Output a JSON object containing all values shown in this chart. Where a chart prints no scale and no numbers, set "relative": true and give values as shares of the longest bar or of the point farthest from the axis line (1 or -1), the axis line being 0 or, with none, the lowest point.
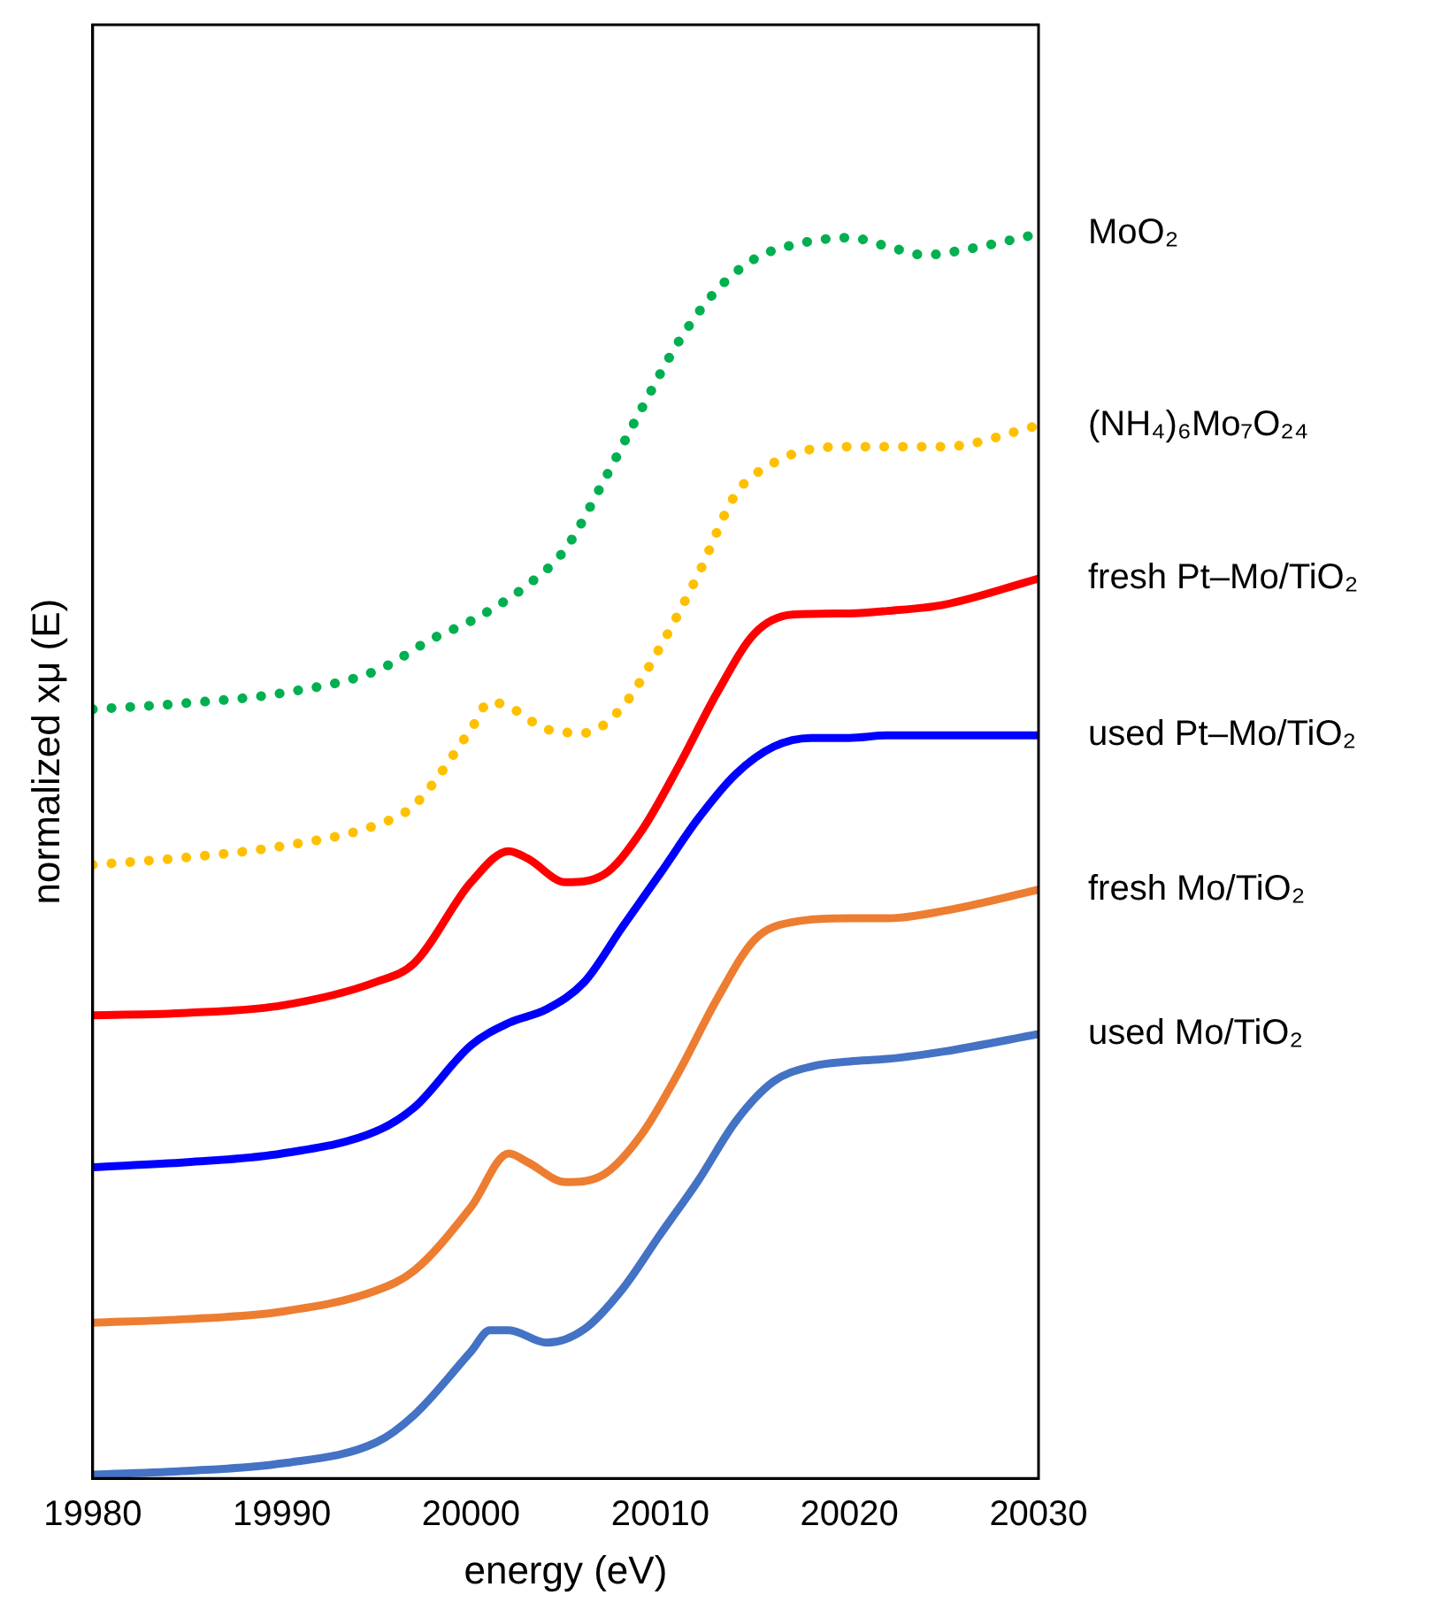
{
  "chart_data": {
    "type": "line",
    "relative": true,
    "xlabel": "energy (eV)",
    "ylabel": "normalized xμ (E)",
    "xlim": [
      19980,
      20030
    ],
    "xticks": [
      19980,
      19990,
      20000,
      20010,
      20020,
      20030
    ],
    "legend": false,
    "grid": false,
    "marker": "none",
    "series": [
      {
        "name": "MoO₂",
        "color": "#00b050",
        "line_style": "dotted",
        "x": [
          19980,
          19985,
          19990,
          19995,
          19998,
          20000,
          20003,
          20005,
          20007,
          20009,
          20011,
          20013,
          20015,
          20017,
          20020,
          20022,
          20024,
          20026,
          20030
        ],
        "values": [
          0.618,
          0.623,
          0.631,
          0.649,
          0.675,
          0.689,
          0.718,
          0.747,
          0.801,
          0.859,
          0.914,
          0.955,
          0.98,
          0.991,
          0.997,
          0.99,
          0.983,
          0.987,
          1
        ]
      },
      {
        "name": "(NH₄)₆Mo₇O₂₄",
        "color": "#ffc000",
        "line_style": "dotted",
        "x": [
          19980,
          19985,
          19990,
          19995,
          19997,
          20000,
          20001,
          20002,
          20004,
          20006,
          20008,
          20010,
          20012,
          20014,
          20016,
          20018,
          20020,
          20025,
          20030
        ],
        "values": [
          0.493,
          0.499,
          0.508,
          0.525,
          0.541,
          0.602,
          0.624,
          0.62,
          0.602,
          0.599,
          0.62,
          0.668,
          0.726,
          0.791,
          0.816,
          0.827,
          0.829,
          0.829,
          0.846
        ]
      },
      {
        "name": "fresh Pt–Mo/TiO₂",
        "color": "#ff0000",
        "line_style": "solid",
        "x": [
          19980,
          19985,
          19990,
          19995,
          19997,
          20000,
          20002,
          20003,
          20005,
          20007,
          20009,
          20011,
          20013,
          20015,
          20017,
          20020,
          20022,
          20025,
          20030
        ],
        "values": [
          0.372,
          0.374,
          0.38,
          0.399,
          0.414,
          0.479,
          0.504,
          0.498,
          0.479,
          0.485,
          0.52,
          0.573,
          0.631,
          0.679,
          0.694,
          0.695,
          0.697,
          0.702,
          0.723
        ]
      },
      {
        "name": "used Pt–Mo/TiO₂",
        "color": "#0000ff",
        "line_style": "solid",
        "x": [
          19980,
          19985,
          19990,
          19995,
          19997,
          20000,
          20002,
          20004,
          20006,
          20008,
          20010,
          20012,
          20014,
          20016,
          20018,
          20020,
          20022,
          20025,
          20030
        ],
        "values": [
          0.25,
          0.254,
          0.261,
          0.279,
          0.298,
          0.348,
          0.366,
          0.377,
          0.399,
          0.443,
          0.486,
          0.53,
          0.566,
          0.588,
          0.595,
          0.595,
          0.597,
          0.597,
          0.597
        ]
      },
      {
        "name": "fresh Mo/TiO₂",
        "color": "#ed7d31",
        "line_style": "solid",
        "x": [
          19980,
          19985,
          19990,
          19995,
          19997,
          20000,
          20002,
          20003,
          20005,
          20007,
          20009,
          20011,
          20013,
          20015,
          20017,
          20020,
          20022,
          20025,
          20030
        ],
        "values": [
          0.125,
          0.128,
          0.134,
          0.151,
          0.167,
          0.218,
          0.261,
          0.254,
          0.238,
          0.244,
          0.276,
          0.327,
          0.385,
          0.433,
          0.447,
          0.45,
          0.45,
          0.456,
          0.473
        ]
      },
      {
        "name": "used Mo/TiO₂",
        "color": "#4472c4",
        "line_style": "solid",
        "x": [
          19980,
          19985,
          19990,
          19995,
          19997,
          20000,
          20001,
          20002,
          20004,
          20006,
          20008,
          20010,
          20012,
          20014,
          20016,
          20018,
          20020,
          20022,
          20025,
          20030
        ],
        "values": [
          0.003,
          0.006,
          0.012,
          0.029,
          0.051,
          0.102,
          0.119,
          0.119,
          0.109,
          0.12,
          0.152,
          0.196,
          0.239,
          0.287,
          0.319,
          0.331,
          0.335,
          0.337,
          0.343,
          0.357
        ]
      }
    ]
  }
}
